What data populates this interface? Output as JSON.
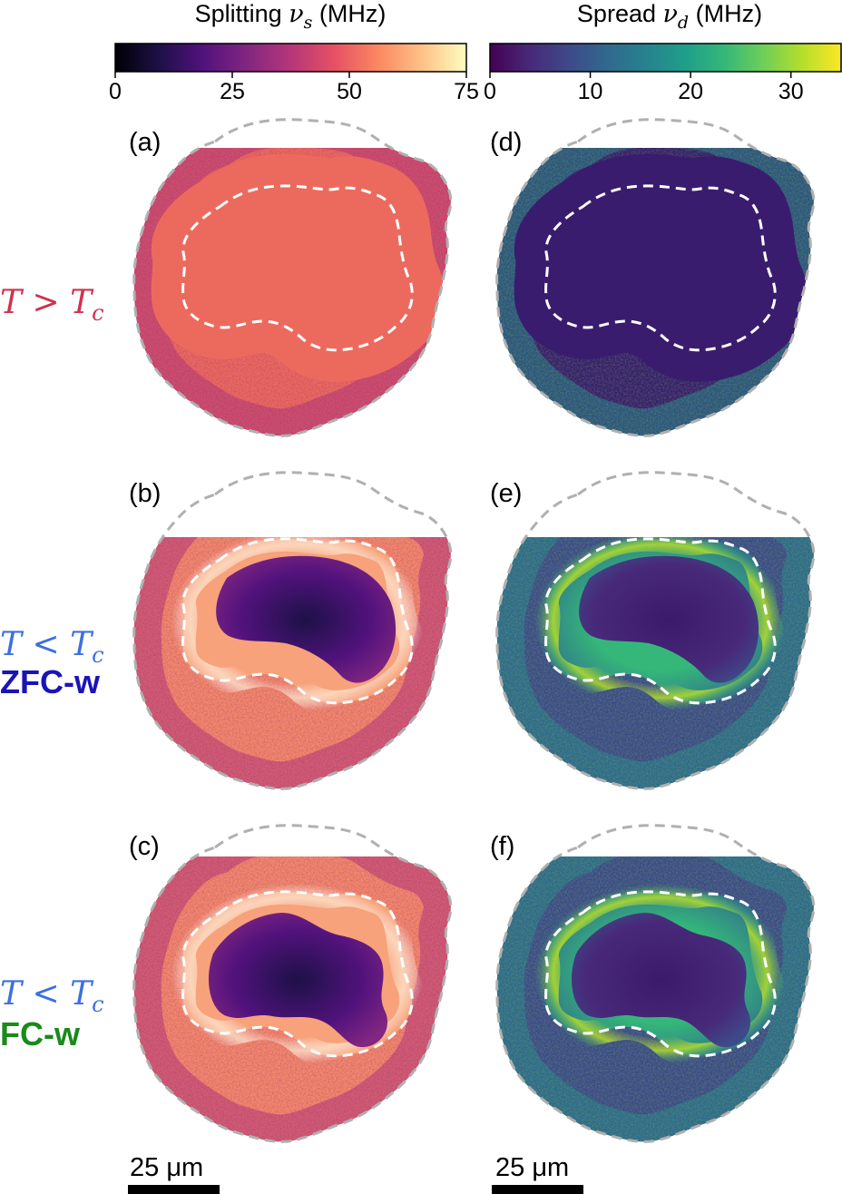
{
  "colorbars": [
    {
      "label_text": "Splitting ",
      "label_symbol": "ν",
      "label_sub": "s",
      "label_unit": " (MHz)",
      "ticks": [
        "0",
        "25",
        "50",
        "75"
      ],
      "tick_values": [
        0,
        25,
        50,
        75
      ],
      "range": [
        0,
        75
      ],
      "colormap": "magma",
      "stops": [
        "#000004",
        "#1d1147",
        "#51127c",
        "#822681",
        "#b63679",
        "#e65164",
        "#fb8861",
        "#fec287",
        "#fcfdbf"
      ]
    },
    {
      "label_text": "Spread ",
      "label_symbol": "ν",
      "label_sub": "d",
      "label_unit": " (MHz)",
      "ticks": [
        "0",
        "10",
        "20",
        "30"
      ],
      "tick_values": [
        0,
        10,
        20,
        30
      ],
      "range": [
        0,
        35
      ],
      "colormap": "viridis",
      "stops": [
        "#440154",
        "#482878",
        "#3e4989",
        "#31688e",
        "#26828e",
        "#1f9e89",
        "#35b779",
        "#6ece58",
        "#b5de2b",
        "#fde725"
      ]
    }
  ],
  "panels": [
    {
      "label": "(a)",
      "map": "splitting",
      "condition": "T > Tc"
    },
    {
      "label": "(d)",
      "map": "spread",
      "condition": "T > Tc"
    },
    {
      "label": "(b)",
      "map": "splitting",
      "condition": "T < Tc, ZFC-w"
    },
    {
      "label": "(e)",
      "map": "spread",
      "condition": "T < Tc, ZFC-w"
    },
    {
      "label": "(c)",
      "map": "splitting",
      "condition": "T < Tc, FC-w"
    },
    {
      "label": "(f)",
      "map": "spread",
      "condition": "T < Tc, FC-w"
    }
  ],
  "row_labels": [
    {
      "math": "T > T",
      "sub": "c",
      "tag": "",
      "math_color": "#d0324e",
      "tag_color": ""
    },
    {
      "math": "T < T",
      "sub": "c",
      "tag": "ZFC-w",
      "math_color": "#3d6fe0",
      "tag_color": "#1a14b8"
    },
    {
      "math": "T < T",
      "sub": "c",
      "tag": "FC-w",
      "math_color": "#3d6fe0",
      "tag_color": "#1a8a1a"
    }
  ],
  "scalebars": [
    {
      "text": "25 μm"
    },
    {
      "text": "25 μm"
    }
  ],
  "colors": {
    "outer_outline": "#b0b0b0",
    "inner_outline": "#ffffff",
    "normal_splitting": "#ec6a5d",
    "normal_spread": "#3a1c6e"
  }
}
